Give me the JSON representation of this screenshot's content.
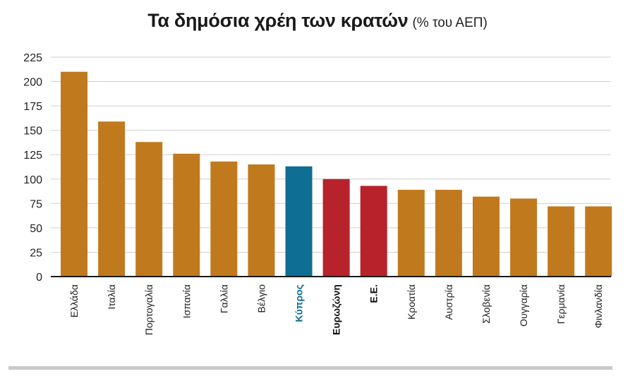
{
  "title": "Τα δημόσια χρέη των κρατών",
  "subtitle": "(% του ΑΕΠ)",
  "chart_data": {
    "type": "bar",
    "title": "Τα δημόσια χρέη των κρατών",
    "subtitle": "(% του ΑΕΠ)",
    "xlabel": "",
    "ylabel": "",
    "ylim": [
      0,
      225
    ],
    "yticks": [
      0,
      25,
      50,
      75,
      100,
      125,
      150,
      175,
      200,
      225
    ],
    "grid": true,
    "categories": [
      "Ελλάδα",
      "Ιταλία",
      "Πορτογαλία",
      "Ισπανία",
      "Γαλλία",
      "Βέλγιο",
      "Κύπρος",
      "Ευρωζώνη",
      "Ε.Ε.",
      "Κροατία",
      "Αυστρία",
      "Σλοβενία",
      "Ουγγαρία",
      "Γερμανία",
      "Φινλανδία"
    ],
    "values": [
      210,
      159,
      138,
      126,
      118,
      115,
      113,
      100,
      93,
      89,
      89,
      82,
      80,
      72,
      72
    ],
    "bar_colors": [
      "#c07a1d",
      "#c07a1d",
      "#c07a1d",
      "#c07a1d",
      "#c07a1d",
      "#c07a1d",
      "#0e6e93",
      "#b8222a",
      "#b8222a",
      "#c07a1d",
      "#c07a1d",
      "#c07a1d",
      "#c07a1d",
      "#c07a1d",
      "#c07a1d"
    ],
    "label_colors": [
      "#222222",
      "#222222",
      "#222222",
      "#222222",
      "#222222",
      "#222222",
      "#0e6e93",
      "#111111",
      "#111111",
      "#222222",
      "#222222",
      "#222222",
      "#222222",
      "#222222",
      "#222222"
    ],
    "label_bold": [
      false,
      false,
      false,
      false,
      false,
      false,
      true,
      true,
      true,
      false,
      false,
      false,
      false,
      false,
      false
    ]
  }
}
